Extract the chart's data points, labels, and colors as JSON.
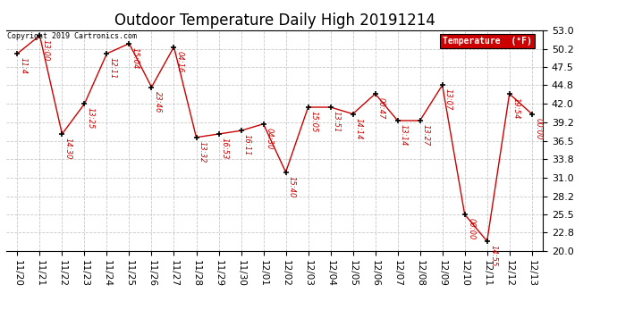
{
  "title": "Outdoor Temperature Daily High 20191214",
  "copyright_text": "Copyright 2019 Cartronics.com",
  "legend_label": "Temperature  (°F)",
  "dates": [
    "11/20",
    "11/21",
    "11/22",
    "11/23",
    "11/24",
    "11/25",
    "11/26",
    "11/27",
    "11/28",
    "11/29",
    "11/30",
    "12/01",
    "12/02",
    "12/03",
    "12/04",
    "12/05",
    "12/06",
    "12/07",
    "12/08",
    "12/09",
    "12/10",
    "12/11",
    "12/12",
    "12/13"
  ],
  "temps": [
    49.5,
    52.2,
    37.5,
    42.0,
    49.5,
    51.0,
    44.5,
    50.5,
    37.0,
    37.5,
    38.0,
    39.0,
    31.8,
    41.5,
    41.5,
    40.5,
    43.5,
    39.5,
    39.5,
    44.8,
    25.5,
    21.5,
    43.5,
    40.5
  ],
  "time_labels": [
    "11:4",
    "13:00",
    "14:30",
    "13:25",
    "12:11",
    "15:04",
    "23:46",
    "04:16",
    "13:32",
    "16:53",
    "16:11",
    "04:30",
    "15:40",
    "15:05",
    "13:51",
    "14:14",
    "00:47",
    "13:14",
    "13:27",
    "13:07",
    "00:00",
    "14:55",
    "19:54",
    "00:00"
  ],
  "ylim": [
    20.0,
    53.0
  ],
  "yticks": [
    20.0,
    22.8,
    25.5,
    28.2,
    31.0,
    33.8,
    36.5,
    39.2,
    42.0,
    44.8,
    47.5,
    50.2,
    53.0
  ],
  "line_color": "#cc0000",
  "marker_color": "#000000",
  "bg_color": "#ffffff",
  "grid_color": "#bbbbbb",
  "title_fontsize": 12,
  "legend_bg": "#cc0000",
  "legend_text_color": "#ffffff"
}
